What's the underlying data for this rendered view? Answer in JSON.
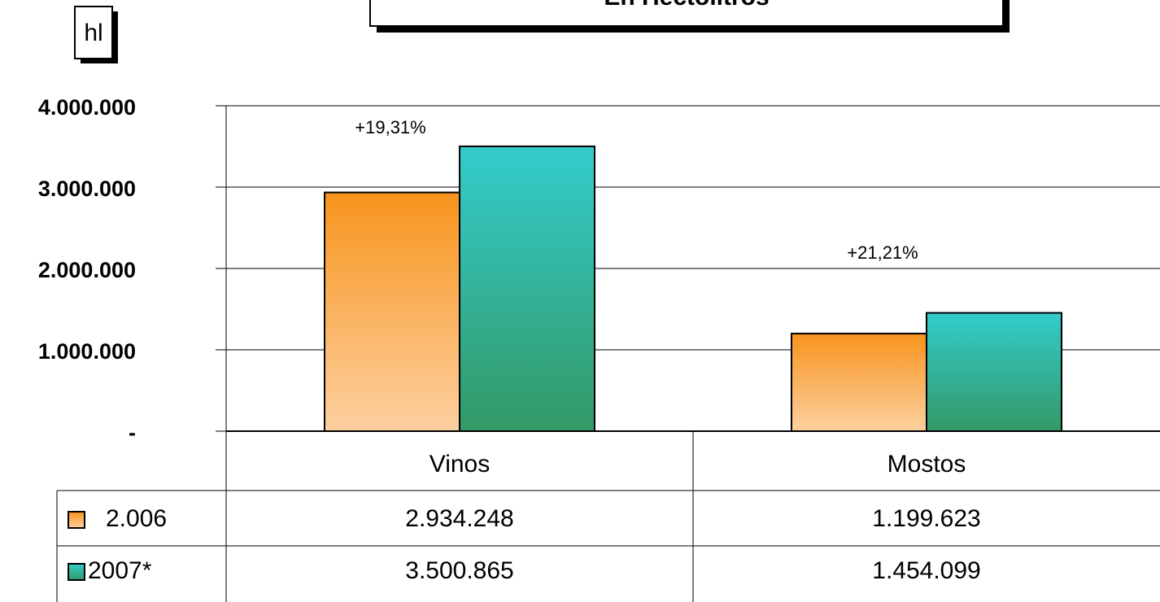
{
  "chart_data": {
    "type": "bar",
    "title": "En Hectolitros",
    "y_label": "hl",
    "categories": [
      "Vinos",
      "Mostos"
    ],
    "series": [
      {
        "name": "2.006",
        "color": "#f7941d",
        "color_end": "#fdd0a0",
        "values": [
          2934248,
          1199623
        ],
        "value_labels": [
          "2.934.248",
          "1.199.623"
        ]
      },
      {
        "name": "2007*",
        "color": "#33cccc",
        "color_end": "#339966",
        "values": [
          3500865,
          1454099
        ],
        "value_labels": [
          "3.500.865",
          "1.454.099"
        ]
      }
    ],
    "annotations": [
      "+19,31%",
      "+21,21%"
    ],
    "ylim": [
      0,
      4000000
    ],
    "yticks": [
      {
        "value": 0,
        "label": "-"
      },
      {
        "value": 1000000,
        "label": "1.000.000"
      },
      {
        "value": 2000000,
        "label": "2.000.000"
      },
      {
        "value": 3000000,
        "label": "3.000.000"
      },
      {
        "value": 4000000,
        "label": "4.000.000"
      }
    ],
    "grid": true
  }
}
